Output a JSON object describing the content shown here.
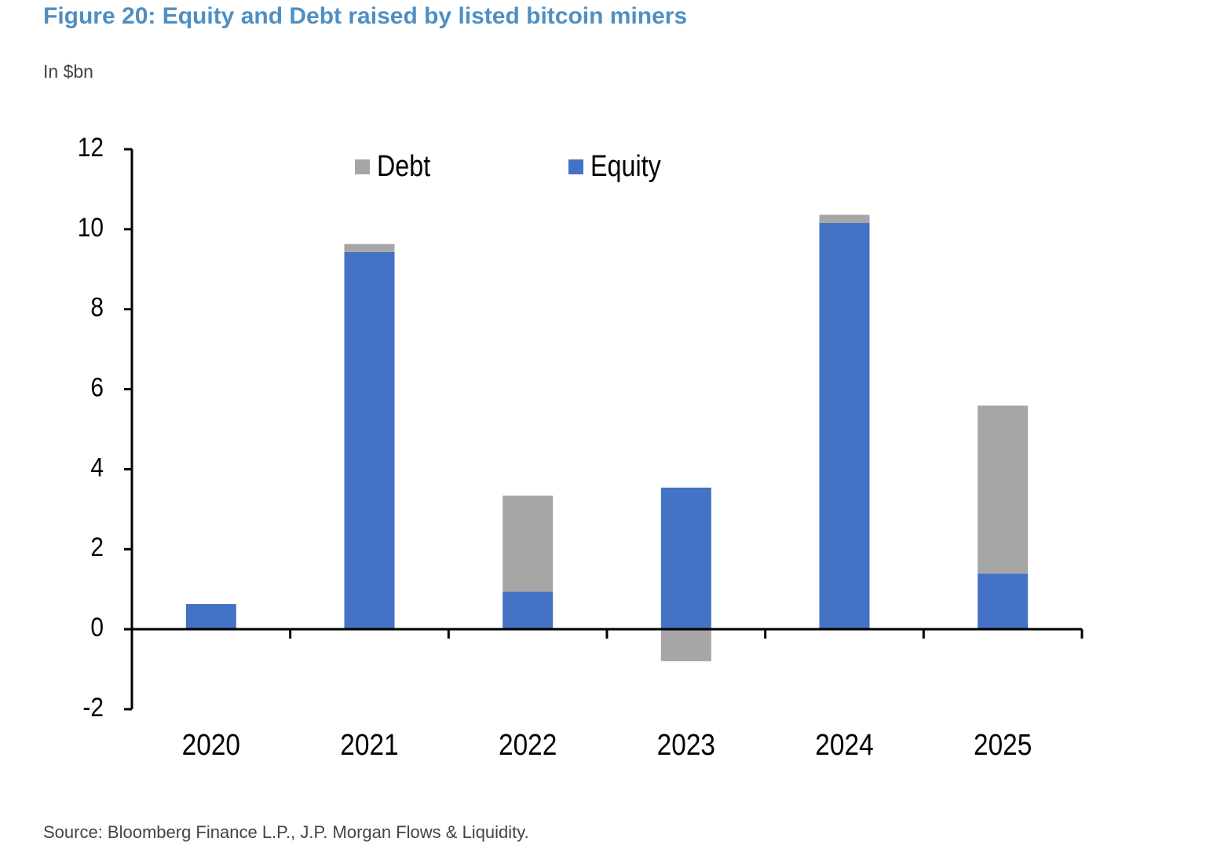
{
  "chart_data": {
    "type": "stacked_bar",
    "title": "Figure 20: Equity and Debt raised by listed bitcoin miners",
    "subtitle": "In $bn",
    "source": "Source: Bloomberg Finance L.P., J.P. Morgan Flows & Liquidity.",
    "categories": [
      "2020",
      "2021",
      "2022",
      "2023",
      "2024",
      "2025"
    ],
    "series": [
      {
        "name": "Debt",
        "color": "#a6a6a6",
        "values": [
          0,
          0.2,
          2.4,
          -0.8,
          0.2,
          4.2
        ]
      },
      {
        "name": "Equity",
        "color": "#4472c4",
        "values": [
          0.63,
          9.43,
          0.94,
          3.54,
          10.16,
          1.39
        ]
      }
    ],
    "ylim": [
      -2,
      12
    ],
    "yticks": [
      -2,
      0,
      2,
      4,
      6,
      8,
      10,
      12
    ],
    "legend": "top",
    "grid": false
  }
}
